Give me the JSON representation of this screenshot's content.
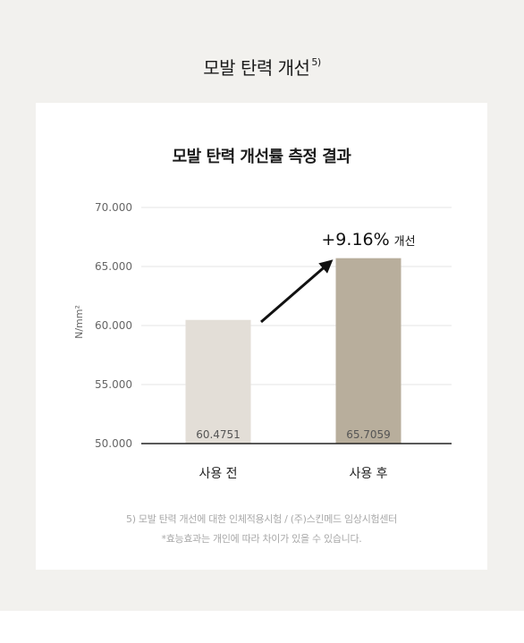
{
  "page": {
    "title": "모발 탄력 개선",
    "title_sup": "5)"
  },
  "card": {
    "footnote_1": "5) 모발 탄력 개선에 대한 인체적용시험 / (주)스킨메드 임상시험센터",
    "footnote_2": "*효능효과는 개인에 따라 차이가 있을 수 있습니다."
  },
  "chart_data": {
    "type": "bar",
    "title": "모발 탄력 개선률 측정 결과",
    "ylabel": "N/mm²",
    "categories": [
      "사용 전",
      "사용 후"
    ],
    "values": [
      60.4751,
      65.7059
    ],
    "value_labels": [
      "60.4751",
      "65.7059"
    ],
    "ylim": [
      50,
      70
    ],
    "yticks": [
      "50.000",
      "55.000",
      "60.000",
      "65.000",
      "70.000"
    ],
    "ytick_values": [
      50,
      55,
      60,
      65,
      70
    ],
    "grid": true,
    "annotation": {
      "value": "+9.16%",
      "suffix": "개선"
    },
    "colors": {
      "before": "#e3ded7",
      "after": "#b8ae9c",
      "grid": "#e6e6e6",
      "axis": "#222222",
      "arrow": "#111111"
    }
  }
}
